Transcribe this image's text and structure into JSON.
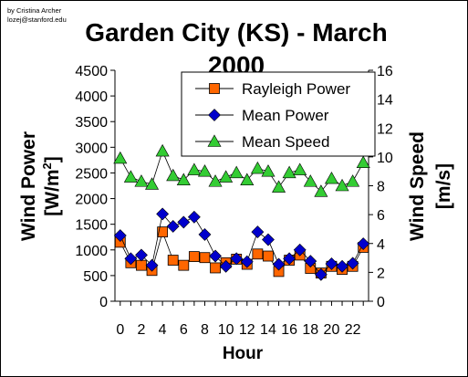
{
  "credit": {
    "line1": "by Cristina Archer",
    "line2": "lozej@stanford.edu"
  },
  "chart_data": {
    "type": "line",
    "title": "Garden City (KS) - March 2000",
    "title_lines": [
      "Garden City (KS) - March",
      "2000"
    ],
    "xlabel": "Hour",
    "ylabel_left": {
      "main": "Wind Power",
      "unit_prefix": "[W/m",
      "unit_sup": "2",
      "unit_suffix": "]"
    },
    "ylabel_right": {
      "main": "Wind Speed",
      "unit": "[m/s]"
    },
    "x": [
      0,
      1,
      2,
      3,
      4,
      5,
      6,
      7,
      8,
      9,
      10,
      11,
      12,
      13,
      14,
      15,
      16,
      17,
      18,
      19,
      20,
      21,
      22,
      23
    ],
    "xticks": [
      0,
      2,
      4,
      6,
      8,
      10,
      12,
      14,
      16,
      18,
      20,
      22
    ],
    "xlim": [
      -0.5,
      23.5
    ],
    "ylim_left": [
      0,
      4500
    ],
    "yticks_left": [
      0,
      500,
      1000,
      1500,
      2000,
      2500,
      3000,
      3500,
      4000,
      4500
    ],
    "ylim_right": [
      0,
      16
    ],
    "yticks_right": [
      0,
      2,
      4,
      6,
      8,
      10,
      12,
      14,
      16
    ],
    "legend_placement": "top-right",
    "grid": false,
    "series": [
      {
        "name": "Rayleigh Power",
        "axis": "left",
        "marker": "square",
        "color": "#FF6600",
        "values": [
          1150,
          750,
          700,
          600,
          1350,
          800,
          700,
          870,
          850,
          650,
          750,
          820,
          720,
          920,
          880,
          580,
          800,
          900,
          640,
          550,
          680,
          620,
          680,
          1050
        ]
      },
      {
        "name": "Mean Power",
        "axis": "left",
        "marker": "diamond",
        "color": "#0000CC",
        "values": [
          1280,
          830,
          900,
          700,
          1700,
          1460,
          1540,
          1640,
          1300,
          880,
          680,
          830,
          770,
          1350,
          1200,
          720,
          830,
          1000,
          780,
          520,
          730,
          680,
          740,
          1120
        ]
      },
      {
        "name": "Mean Speed",
        "axis": "right",
        "marker": "triangle",
        "color": "#33CC33",
        "values": [
          9.9,
          8.6,
          8.3,
          8.1,
          10.4,
          8.7,
          8.4,
          9.1,
          9.0,
          8.3,
          8.6,
          8.9,
          8.4,
          9.2,
          9.0,
          7.9,
          8.9,
          9.1,
          8.3,
          7.6,
          8.5,
          8.0,
          8.3,
          9.6
        ]
      }
    ]
  }
}
